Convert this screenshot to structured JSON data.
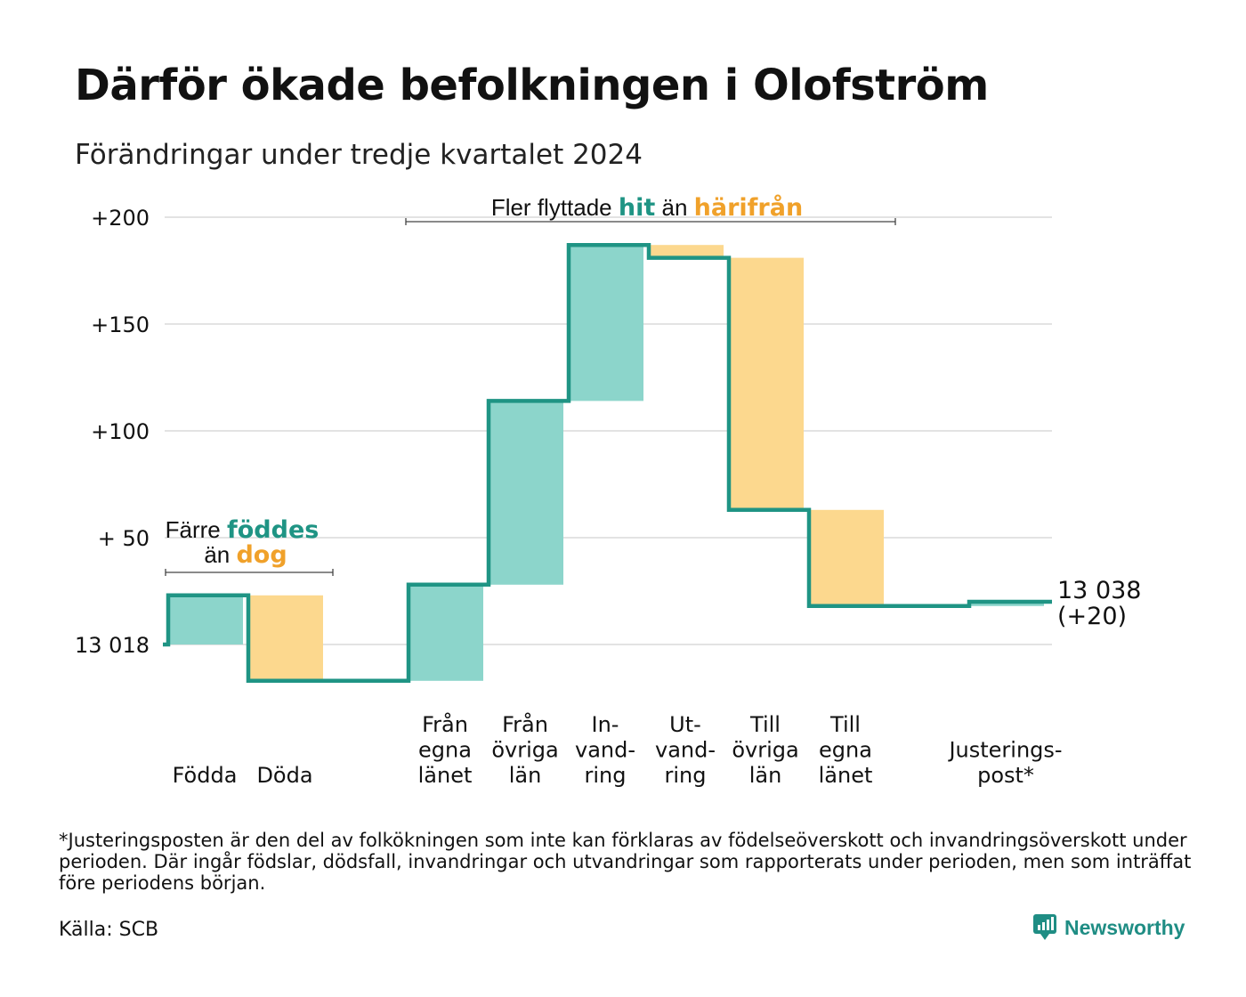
{
  "header": {
    "title": "Därför ökade befolkningen i Olofström",
    "subtitle": "Förändringar under tredje kvartalet 2024"
  },
  "colors": {
    "positive_fill": "#8cd5cb",
    "negative_fill": "#fcd88e",
    "line": "#1f9484",
    "accent_teal": "#1f9484",
    "accent_orange": "#f0a12a",
    "grid": "#e3e3e3"
  },
  "chart_data": {
    "type": "waterfall",
    "baseline": 13018,
    "baseline_label": "13 018",
    "ylim": [
      -17,
      200
    ],
    "yticks": [
      {
        "value": 200,
        "label": "+200"
      },
      {
        "value": 150,
        "label": "+150"
      },
      {
        "value": 100,
        "label": "+100"
      },
      {
        "value": 50,
        "label": "+ 50"
      },
      {
        "value": 0,
        "label": "13 018"
      }
    ],
    "steps": [
      {
        "lines": [
          "Födda"
        ],
        "change": 23,
        "slot": 0
      },
      {
        "lines": [
          "Döda"
        ],
        "change": -40,
        "slot": 1
      },
      {
        "lines": [
          "Från",
          "egna",
          "länet"
        ],
        "change": 45,
        "slot": 3
      },
      {
        "lines": [
          "Från",
          "övriga",
          "län"
        ],
        "change": 86,
        "slot": 4
      },
      {
        "lines": [
          "In-",
          "vand-",
          "ring"
        ],
        "change": 73,
        "slot": 5
      },
      {
        "lines": [
          "Ut-",
          "vand-",
          "ring"
        ],
        "change": -6,
        "slot": 6
      },
      {
        "lines": [
          "Till",
          "övriga",
          "län"
        ],
        "change": -118,
        "slot": 7
      },
      {
        "lines": [
          "Till",
          "egna",
          "länet"
        ],
        "change": -45,
        "slot": 8
      },
      {
        "lines": [
          "Justerings-",
          "post*"
        ],
        "change": 2,
        "slot": 10
      }
    ],
    "end_value": "13 038",
    "end_change": "(+20)",
    "annotations": {
      "births": {
        "line1": "Färre",
        "highlight1": "föddes",
        "line2": "än",
        "highlight2": "dog"
      },
      "migration": {
        "pre": "Fler flyttade",
        "highlight1": "hit",
        "mid": "än",
        "highlight2": "härifrån"
      }
    }
  },
  "footer": {
    "footnote": "*Justeringsposten är den del av folkökningen som inte kan förklaras av födelseöverskott och invandringsöverskott under perioden. Där ingår födslar, dödsfall, invandringar och utvandringar som rapporterats under perioden, men som inträffat före periodens början.",
    "source": "Källa: SCB",
    "brand": "Newsworthy"
  }
}
